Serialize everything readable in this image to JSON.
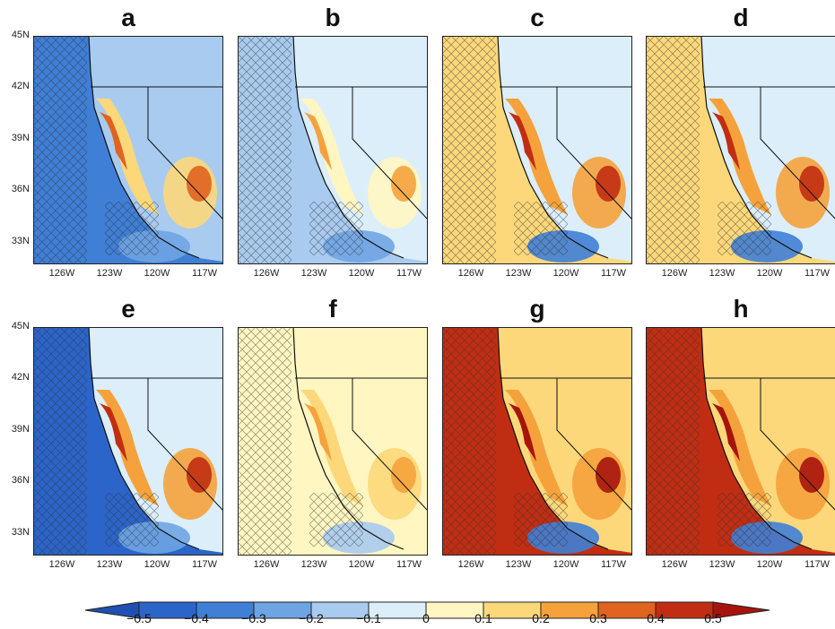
{
  "figure": {
    "panels": [
      {
        "label": "a",
        "theme": "cool"
      },
      {
        "label": "b",
        "theme": "neutral-cool"
      },
      {
        "label": "c",
        "theme": "warm"
      },
      {
        "label": "d",
        "theme": "warm"
      },
      {
        "label": "e",
        "theme": "mixed-warm"
      },
      {
        "label": "f",
        "theme": "neutral"
      },
      {
        "label": "g",
        "theme": "hot"
      },
      {
        "label": "h",
        "theme": "hot"
      }
    ],
    "lat_labels": [
      "45N",
      "42N",
      "39N",
      "36N",
      "33N"
    ],
    "lon_labels": [
      "126W",
      "123W",
      "120W",
      "117W"
    ],
    "colorbar": {
      "ticks": [
        "−0.5",
        "−0.4",
        "−0.3",
        "−0.2",
        "−0.1",
        "0",
        "0.1",
        "0.2",
        "0.3",
        "0.4",
        "0.5"
      ],
      "colors": [
        "#2b65c9",
        "#3f7fd6",
        "#6fa4e3",
        "#a9cbef",
        "#dbeefa",
        "#fff6c2",
        "#fcd87a",
        "#f5a23c",
        "#e0631f",
        "#c12d12"
      ],
      "end_low": "#1f4fb0",
      "end_high": "#a8140c"
    }
  }
}
